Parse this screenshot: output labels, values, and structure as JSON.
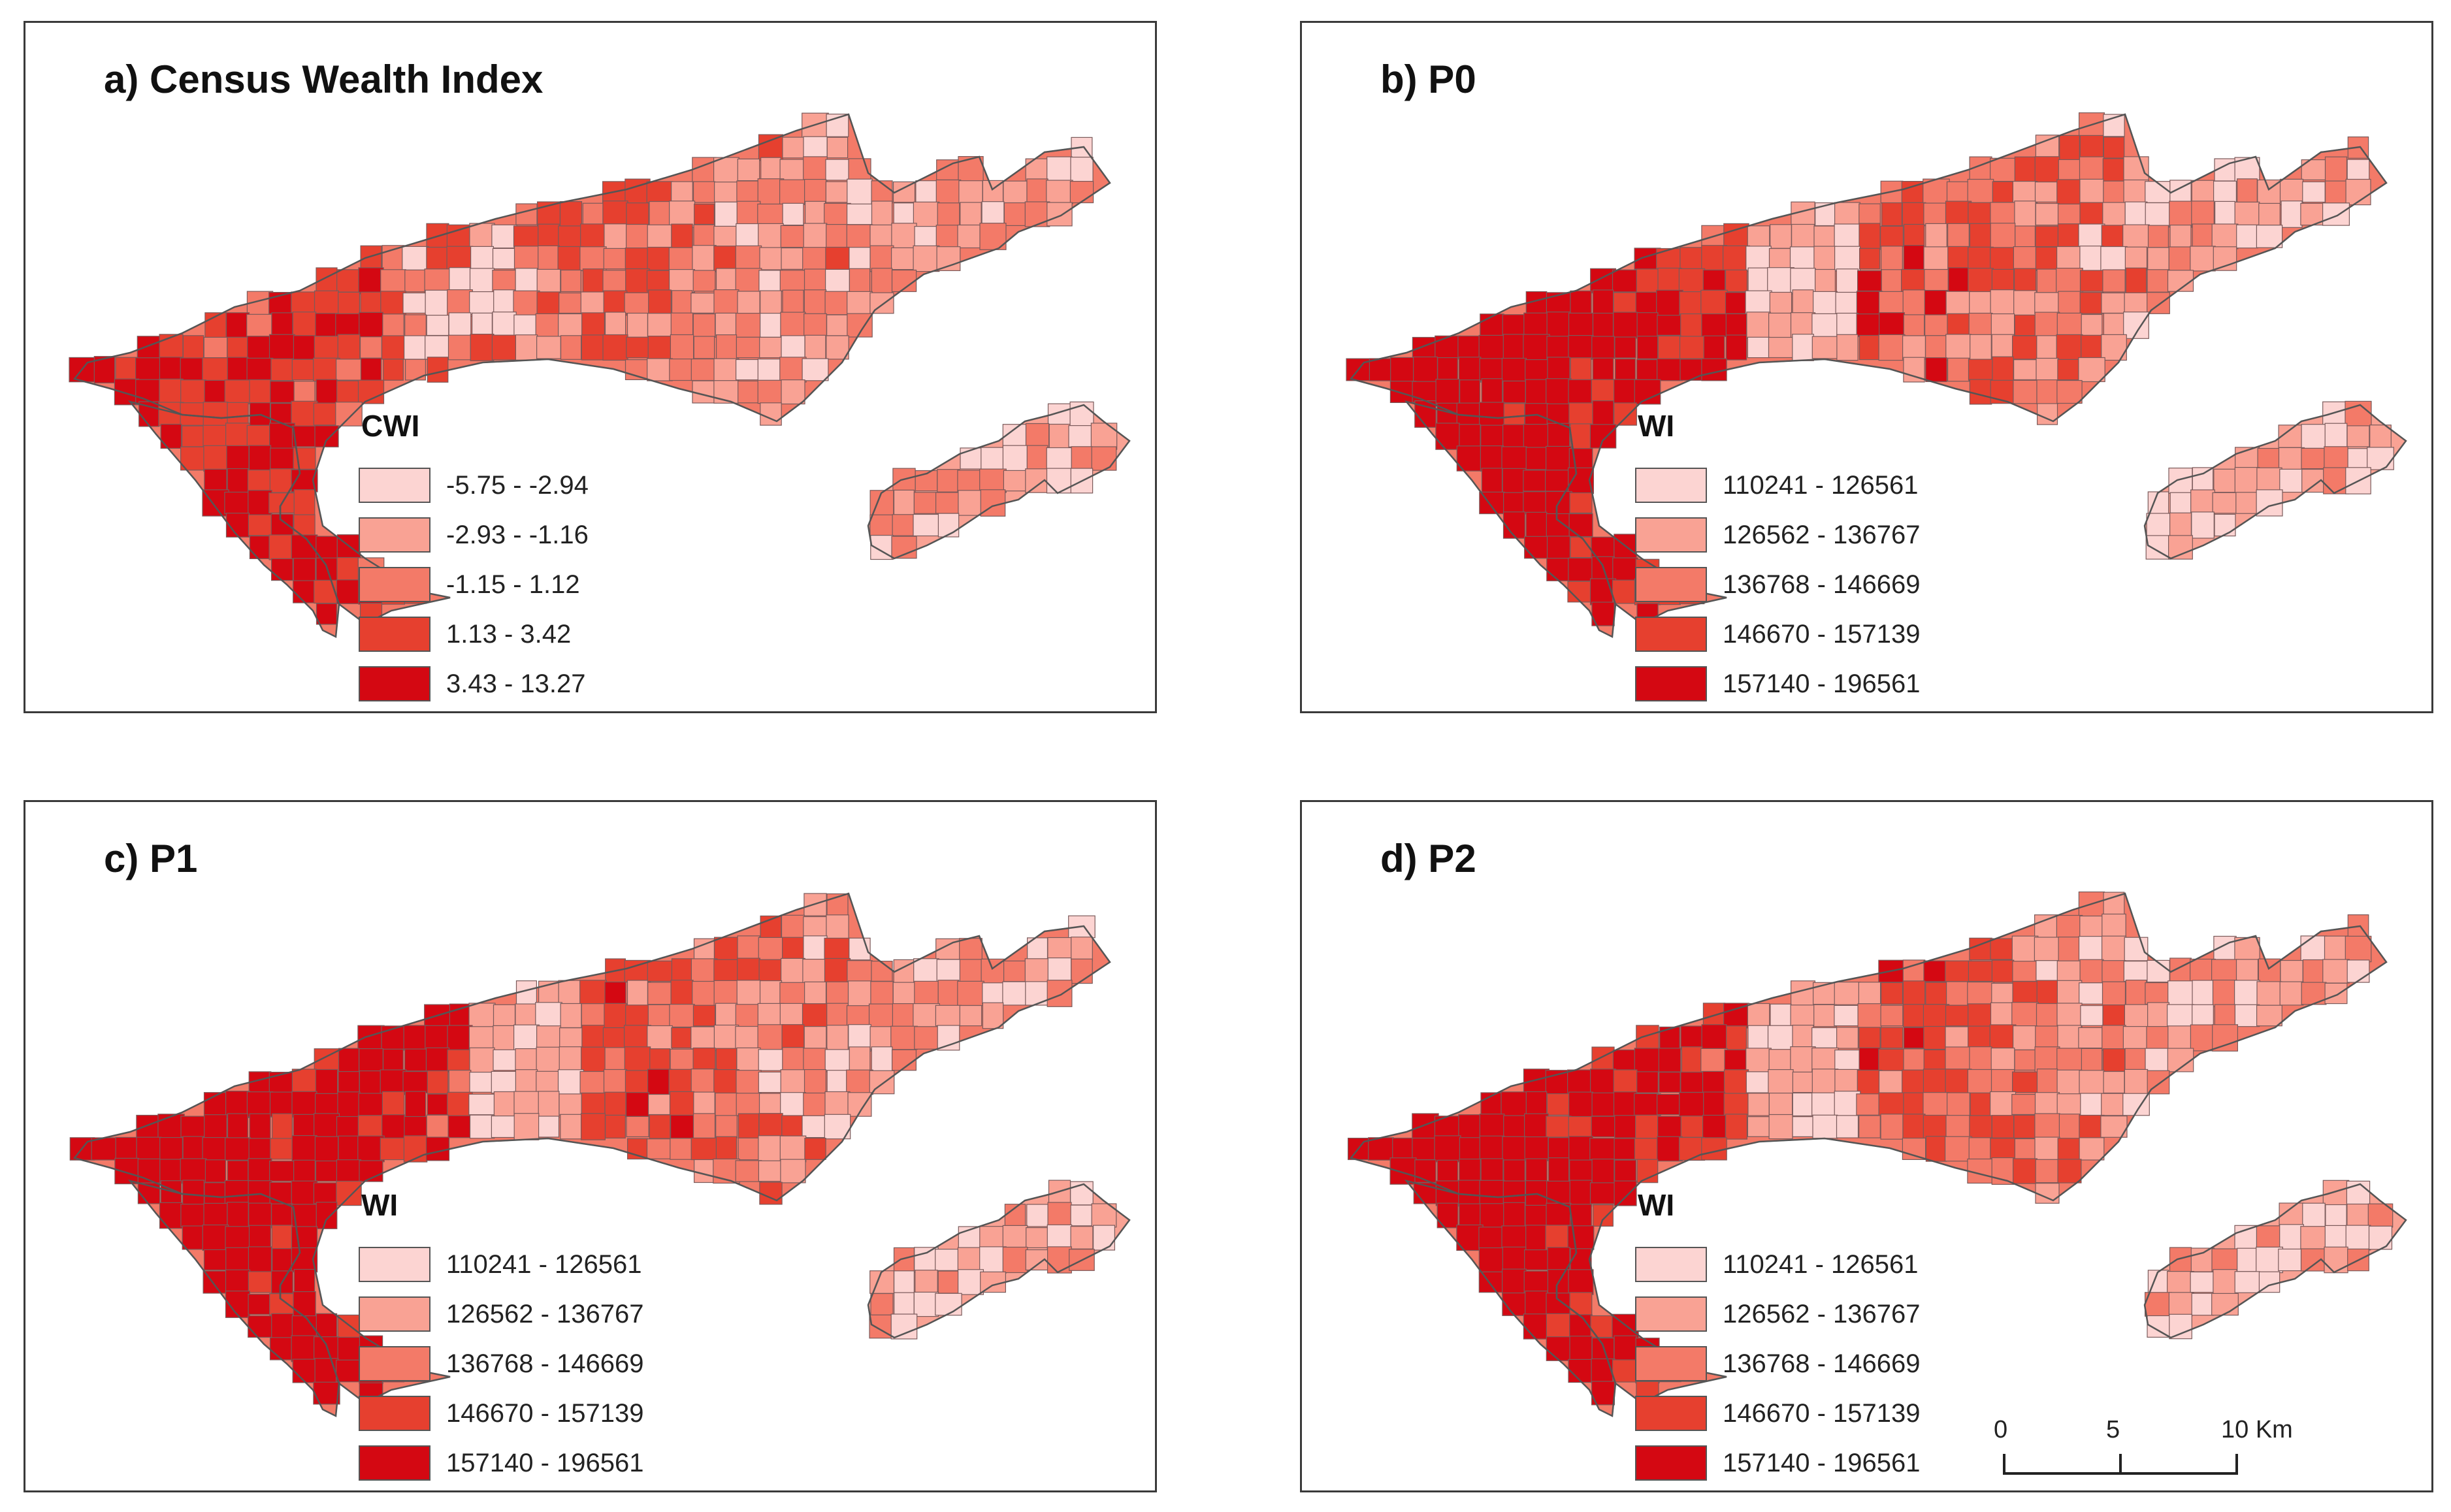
{
  "panels": [
    {
      "title": "a) Census Wealth Index",
      "legend_title": "CWI",
      "classes": [
        {
          "label": "-5.75 - -2.94",
          "color": "#fcd4d2"
        },
        {
          "label": "-2.93 - -1.16",
          "color": "#f9a294"
        },
        {
          "label": "-1.15 - 1.12",
          "color": "#f37a68"
        },
        {
          "label": "1.13 - 3.42",
          "color": "#e6402f"
        },
        {
          "label": "3.43 - 13.27",
          "color": "#d40812"
        }
      ]
    },
    {
      "title": "b) P0",
      "legend_title": "WI",
      "classes": [
        {
          "label": "110241 - 126561",
          "color": "#fcd4d2"
        },
        {
          "label": "126562 - 136767",
          "color": "#f9a294"
        },
        {
          "label": "136768 - 146669",
          "color": "#f37a68"
        },
        {
          "label": "146670 - 157139",
          "color": "#e6402f"
        },
        {
          "label": "157140 - 196561",
          "color": "#d40812"
        }
      ]
    },
    {
      "title": "c) P1",
      "legend_title": "WI",
      "classes": [
        {
          "label": "110241 - 126561",
          "color": "#fcd4d2"
        },
        {
          "label": "126562 - 136767",
          "color": "#f9a294"
        },
        {
          "label": "136768 - 146669",
          "color": "#f37a68"
        },
        {
          "label": "146670 - 157139",
          "color": "#e6402f"
        },
        {
          "label": "157140 - 196561",
          "color": "#d40812"
        }
      ]
    },
    {
      "title": "d) P2",
      "legend_title": "WI",
      "classes": [
        {
          "label": "110241 - 126561",
          "color": "#fcd4d2"
        },
        {
          "label": "126562 - 136767",
          "color": "#f9a294"
        },
        {
          "label": "136768 - 146669",
          "color": "#f37a68"
        },
        {
          "label": "146670 - 157139",
          "color": "#e6402f"
        },
        {
          "label": "157140 - 196561",
          "color": "#d40812"
        }
      ]
    }
  ],
  "scale_bar": {
    "tick_labels": [
      "0",
      "5",
      "10 Km"
    ]
  },
  "colors": {
    "border": "#3a3a3a",
    "tract_outline": "#7a5a5a"
  }
}
